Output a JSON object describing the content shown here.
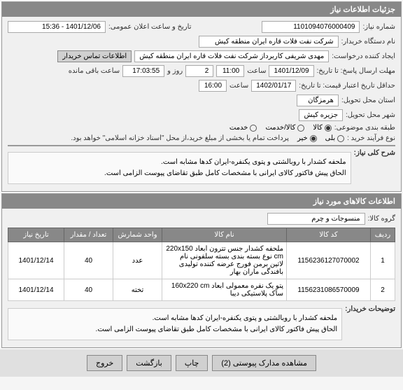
{
  "panel1": {
    "title": "جزئیات اطلاعات نیاز",
    "need_no_label": "شماره نیاز:",
    "need_no": "1101094076000409",
    "pub_date_label": "تاریخ و ساعت اعلان عمومی:",
    "pub_date": "1401/12/06 - 15:36",
    "buyer_label": "نام دستگاه خریدار:",
    "buyer": "شرکت نفت فلات قاره ایران منطقه کیش",
    "requester_label": "ایجاد کننده درخواست:",
    "requester": "مهدی شریفی کاربرداز شرکت نفت فلات قاره ایران منطقه کیش",
    "contact_btn": "اطلاعات تماس خریدار",
    "deadline_label": "مهلت ارسال پاسخ: تا تاریخ:",
    "deadline_date": "1401/12/09",
    "time_label": "ساعت",
    "deadline_time": "11:00",
    "day_label": "روز و",
    "days": "2",
    "countdown_time": "17:03:55",
    "remaining_label": "ساعت باقی مانده",
    "validity_label": "حداقل تاریخ اعتبار قیمت: تا تاریخ:",
    "validity_date": "1402/01/17",
    "validity_time": "16:00",
    "province_label": "استان محل تحویل:",
    "province": "هرمزگان",
    "city_label": "شهر محل تحویل:",
    "city": "جزیره کیش",
    "category_label": "طبقه بندی موضوعی:",
    "cat_goods": "کالا",
    "cat_service": "کالا/خدمت",
    "cat_serv": "خدمت",
    "process_label": "نوع فرآیند خرید :",
    "process_text": "پرداخت تمام یا بخشی از مبلغ خرید،از محل \"اسناد خزانه اسلامی\" خواهد بود.",
    "opt_yes": "بلی",
    "opt_no": "خیر",
    "desc_label": "شرح کلی نیاز:",
    "desc_line1": "ملحفه کشدار با روبالشتی و پتوی یکنفره-ایران کدها مشابه است.",
    "desc_line2": "الحاق پیش فاکتور کالای ایرانی با مشخصات کامل طبق تقاضای پیوست الزامی است."
  },
  "panel2": {
    "title": "اطلاعات کالاهای مورد نیاز",
    "group_label": "گروه کالا:",
    "group": "منسوجات و چرم",
    "cols": {
      "row": "ردیف",
      "code": "کد کالا",
      "name": "نام کالا",
      "unit": "واحد شمارش",
      "qty": "تعداد / مقدار",
      "date": "تاریخ نیاز"
    },
    "rows": [
      {
        "n": "1",
        "code": "1156236127070002",
        "name": "ملحفه کشدار جنس تترون ابعاد 220x150 cm نوع بسته بندی بسته سلفونی نام لاتین برمن فورج عرضه کننده تولیدی بافندگی ماران بهار",
        "unit": "عدد",
        "qty": "40",
        "date": "1401/12/14"
      },
      {
        "n": "2",
        "code": "1156231086570009",
        "name": "پتو یک نفره معمولی ابعاد 160x220 cm ساک پلاستیکی دیبا",
        "unit": "تخته",
        "qty": "40",
        "date": "1401/12/14"
      }
    ],
    "notes_label": "توضیحات خریدار:",
    "notes_line1": "ملحفه کشدار با روبالشتی و پتوی یکنفره-ایران کدها مشابه است.",
    "notes_line2": "الحاق پیش فاکتور کالای ایرانی با مشخصات کامل طبق تقاضای پیوست الزامی است."
  },
  "footer": {
    "attach": "مشاهده مدارک پیوستی (2)",
    "print": "چاپ",
    "back": "بازگشت",
    "exit": "خروج"
  }
}
